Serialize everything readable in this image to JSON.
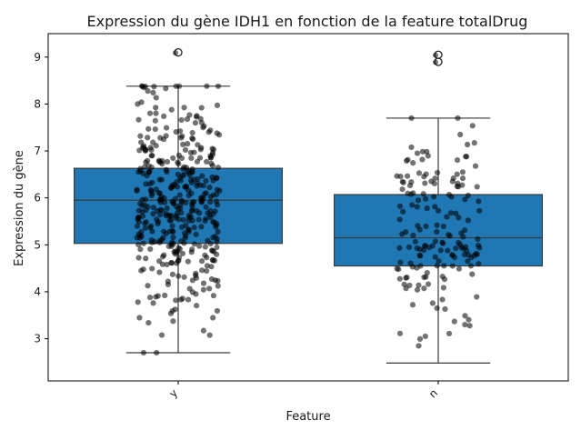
{
  "chart_data": {
    "type": "box",
    "title": "Expression du gène IDH1 en fonction de la feature totalDrug",
    "xlabel": "Feature",
    "ylabel": "Expression du gène",
    "categories": [
      "y",
      "n"
    ],
    "ylim": [
      2.1,
      9.5
    ],
    "yticks": [
      3,
      4,
      5,
      6,
      7,
      8,
      9
    ],
    "grid": false,
    "box_color": "#1f77b4",
    "point_color": "#000000",
    "point_opacity": 0.55,
    "boxes": [
      {
        "category": "y",
        "q1": 5.03,
        "median": 5.95,
        "q3": 6.63,
        "whisker_low": 2.7,
        "whisker_high": 8.38,
        "outliers": [
          9.1
        ],
        "approx_points": 420
      },
      {
        "category": "n",
        "q1": 4.55,
        "median": 5.15,
        "q3": 6.07,
        "whisker_low": 2.48,
        "whisker_high": 7.7,
        "outliers": [
          9.05,
          8.9
        ],
        "approx_points": 170
      }
    ]
  }
}
